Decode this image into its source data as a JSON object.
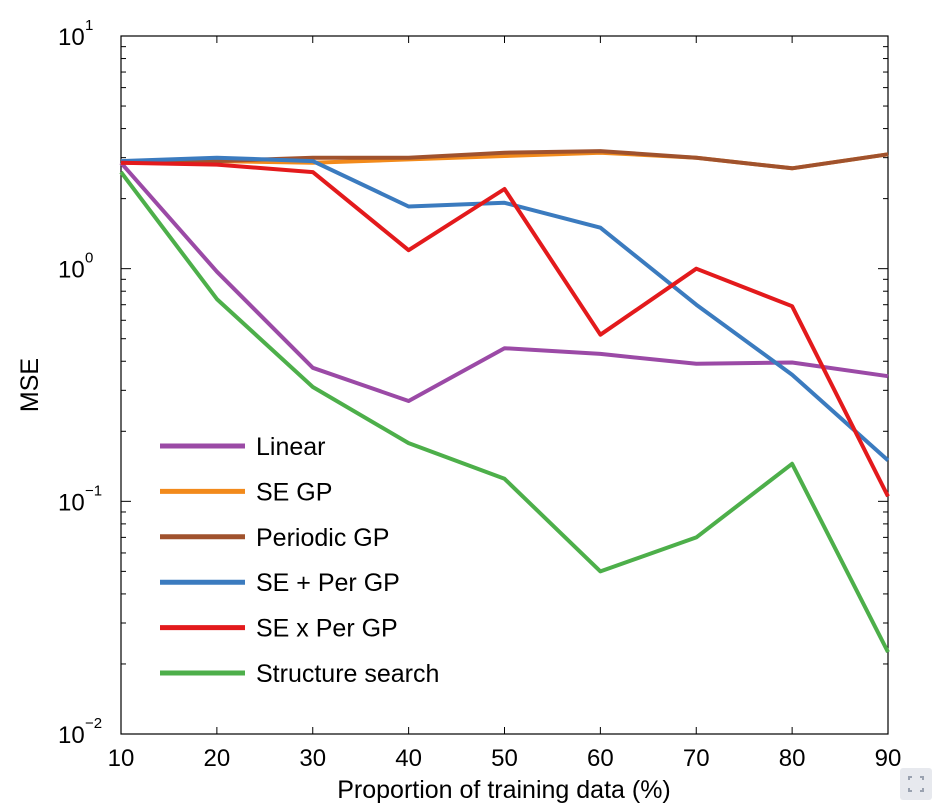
{
  "chart_data": {
    "type": "line",
    "title": "",
    "xlabel": "Proportion of training data (%)",
    "ylabel": "MSE",
    "x": [
      10,
      20,
      30,
      40,
      50,
      60,
      70,
      80,
      90
    ],
    "xlim": [
      10,
      90
    ],
    "xticks": [
      "10",
      "20",
      "30",
      "40",
      "50",
      "60",
      "70",
      "80",
      "90"
    ],
    "yscale": "log",
    "ylim": [
      0.01,
      10
    ],
    "yticks": [
      {
        "base": "10",
        "exp": "1"
      },
      {
        "base": "10",
        "exp": "0"
      },
      {
        "base": "10",
        "exp": "−1"
      },
      {
        "base": "10",
        "exp": "−2"
      }
    ],
    "grid": false,
    "legend_position": "lower-left",
    "series": [
      {
        "name": "Linear",
        "color": "#9b4aa6",
        "values": [
          2.85,
          0.97,
          0.375,
          0.27,
          0.455,
          0.43,
          0.39,
          0.395,
          0.345
        ]
      },
      {
        "name": "SE GP",
        "color": "#f28a1b",
        "values": [
          2.85,
          2.9,
          2.85,
          2.95,
          3.05,
          3.15,
          3.0,
          2.7,
          3.1
        ]
      },
      {
        "name": "Periodic GP",
        "color": "#a0522d",
        "values": [
          2.85,
          2.9,
          3.0,
          3.0,
          3.15,
          3.2,
          3.0,
          2.7,
          3.1
        ]
      },
      {
        "name": "SE + Per GP",
        "color": "#3b7bbf",
        "values": [
          2.9,
          3.0,
          2.9,
          1.85,
          1.92,
          1.5,
          0.7,
          0.35,
          0.15
        ]
      },
      {
        "name": "SE x Per GP",
        "color": "#e31a1c",
        "values": [
          2.85,
          2.8,
          2.6,
          1.2,
          2.2,
          0.52,
          1.0,
          0.69,
          0.105
        ]
      },
      {
        "name": "Structure search",
        "color": "#4daf4a",
        "values": [
          2.6,
          0.74,
          0.31,
          0.178,
          0.125,
          0.05,
          0.07,
          0.145,
          0.0225
        ]
      }
    ]
  }
}
